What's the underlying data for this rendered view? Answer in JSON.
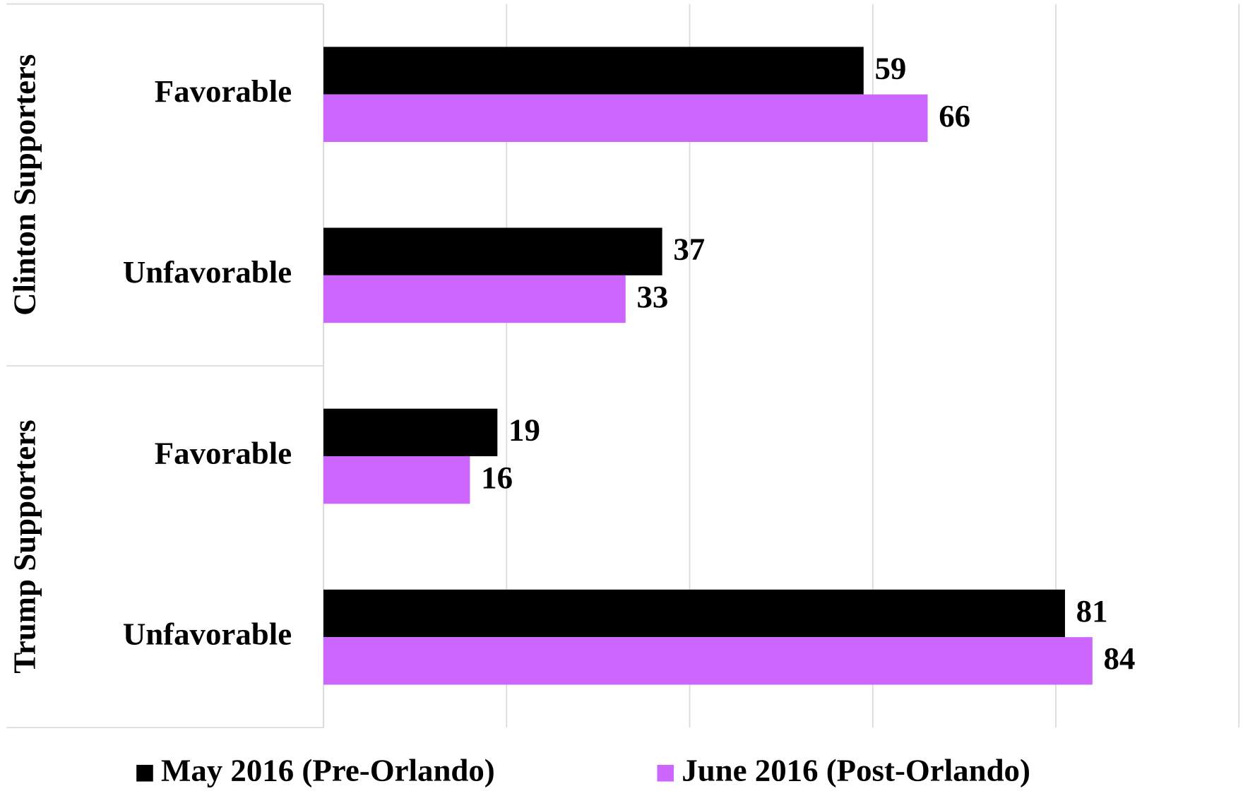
{
  "chart_data": {
    "type": "hbar",
    "groups": [
      {
        "name": "Clinton Supporters",
        "categories": [
          "Favorable",
          "Unfavorable"
        ]
      },
      {
        "name": "Trump Supporters",
        "categories": [
          "Favorable",
          "Unfavorable"
        ]
      }
    ],
    "series": [
      {
        "name": "May 2016 (Pre-Orlando)",
        "color": "#000000",
        "values": [
          59,
          37,
          19,
          81
        ]
      },
      {
        "name": "June 2016 (Post-Orlando)",
        "color": "#cc66ff",
        "values": [
          66,
          33,
          16,
          84
        ]
      }
    ],
    "xlim": [
      0,
      100
    ],
    "xticks": [
      0,
      20,
      40,
      60,
      80,
      100
    ],
    "grid": true,
    "legend": "bottom"
  }
}
